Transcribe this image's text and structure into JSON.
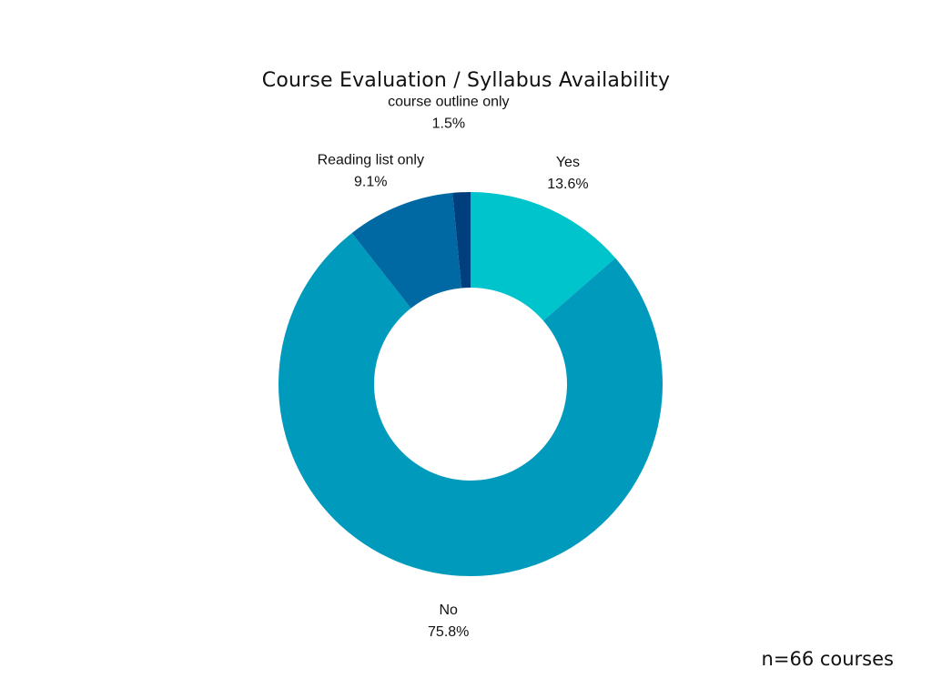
{
  "chart_data": {
    "type": "pie",
    "title": "Course Evaluation / Syllabus Availability",
    "categories": [
      "Yes",
      "No",
      "Reading list only",
      "course outline only"
    ],
    "values": [
      13.6,
      75.8,
      9.1,
      1.5
    ],
    "value_labels": [
      "13.6%",
      "75.8%",
      "9.1%",
      "1.5%"
    ],
    "colors": [
      "#00c4cc",
      "#009abd",
      "#0069a3",
      "#003f7d"
    ],
    "style": "donut"
  },
  "footnote": "n=66 courses"
}
